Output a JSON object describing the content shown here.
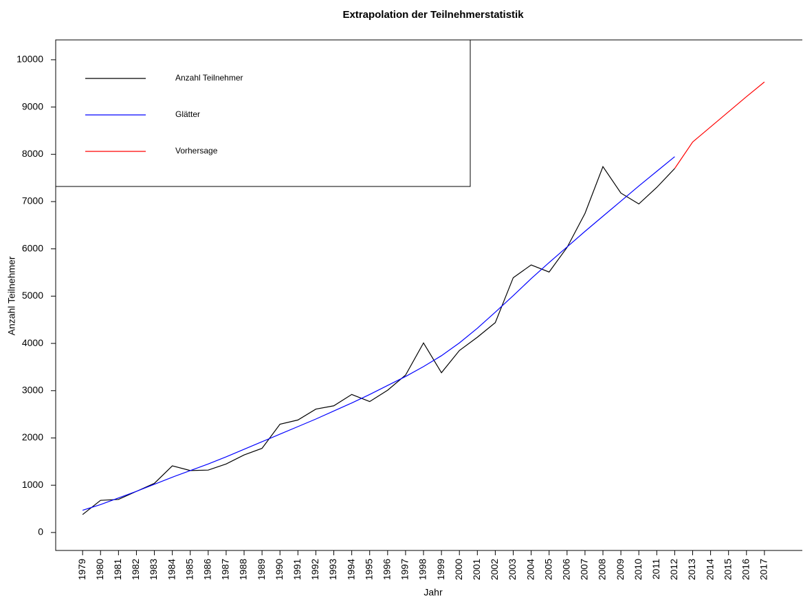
{
  "chart_data": {
    "type": "line",
    "title": "Extrapolation der Teilnehmerstatistik",
    "x_label": "Jahr",
    "y_label": "Anzahl Teilnehmer",
    "x": [
      1979,
      1980,
      1981,
      1982,
      1983,
      1984,
      1985,
      1986,
      1987,
      1988,
      1989,
      1990,
      1991,
      1992,
      1993,
      1994,
      1995,
      1996,
      1997,
      1998,
      1999,
      2000,
      2001,
      2002,
      2003,
      2004,
      2005,
      2006,
      2007,
      2008,
      2009,
      2010,
      2011,
      2012,
      2013,
      2014,
      2015,
      2016,
      2017
    ],
    "xlim": [
      1977.5,
      2019.15
    ],
    "xticks": [
      1979,
      1980,
      1981,
      1982,
      1983,
      1984,
      1985,
      1986,
      1987,
      1988,
      1989,
      1990,
      1991,
      1992,
      1993,
      1994,
      1995,
      1996,
      1997,
      1998,
      1999,
      2000,
      2001,
      2002,
      2003,
      2004,
      2005,
      2006,
      2007,
      2008,
      2009,
      2010,
      2011,
      2012,
      2013,
      2014,
      2015,
      2016,
      2017
    ],
    "ylim": [
      -380,
      10420
    ],
    "yticks": [
      0,
      1000,
      2000,
      3000,
      4000,
      5000,
      6000,
      7000,
      8000,
      9000,
      10000
    ],
    "legend_position": "top-left",
    "series": [
      {
        "name": "Anzahl Teilnehmer",
        "color": "#000000",
        "values": [
          380,
          680,
          700,
          870,
          1040,
          1410,
          1310,
          1320,
          1450,
          1640,
          1780,
          2290,
          2380,
          2610,
          2680,
          2920,
          2770,
          3010,
          3330,
          4010,
          3380,
          3850,
          4130,
          4440,
          5390,
          5660,
          5510,
          6030,
          6750,
          7740,
          7180,
          6950,
          7300,
          7700,
          null,
          null,
          null,
          null,
          null
        ]
      },
      {
        "name": "Glätter",
        "color": "#0000ff",
        "values": [
          470,
          590,
          730,
          870,
          1020,
          1170,
          1310,
          1450,
          1600,
          1760,
          1920,
          2080,
          2240,
          2400,
          2570,
          2740,
          2920,
          3110,
          3300,
          3510,
          3740,
          4010,
          4320,
          4660,
          5010,
          5370,
          5710,
          6040,
          6370,
          6690,
          7010,
          7330,
          7640,
          7950,
          null,
          null,
          null,
          null,
          null
        ]
      },
      {
        "name": "Vorhersage",
        "color": "#ff0000",
        "values": [
          null,
          null,
          null,
          null,
          null,
          null,
          null,
          null,
          null,
          null,
          null,
          null,
          null,
          null,
          null,
          null,
          null,
          null,
          null,
          null,
          null,
          null,
          null,
          null,
          null,
          null,
          null,
          null,
          null,
          null,
          null,
          null,
          null,
          7700,
          8260,
          8580,
          8900,
          9220,
          9530
        ]
      }
    ]
  }
}
